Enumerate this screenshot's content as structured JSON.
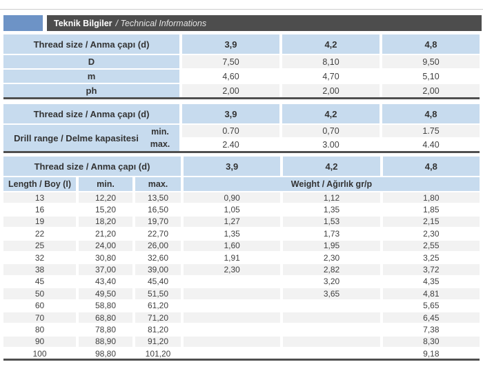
{
  "header": {
    "title": "Teknik Bilgiler",
    "subtitle": "/ Technical Informations"
  },
  "thread_header_label": "Thread size / Anma çapı (d)",
  "sizes": [
    "3,9",
    "4,2",
    "4,8"
  ],
  "colors": {
    "brand_blue": "#6d93c6",
    "header_dark": "#4d4d4d",
    "cell_blue": "#c7dbee",
    "stripe_gray": "#f2f2f2"
  },
  "table1": {
    "rows": [
      {
        "label": "D",
        "values": [
          "7,50",
          "8,10",
          "9,50"
        ]
      },
      {
        "label": "m",
        "values": [
          "4,60",
          "4,70",
          "5,10"
        ]
      },
      {
        "label": "ph",
        "values": [
          "2,00",
          "2,00",
          "2,00"
        ]
      }
    ]
  },
  "table2": {
    "label": "Drill range / Delme kapasitesi",
    "rows": [
      {
        "label": "min.",
        "values": [
          "0.70",
          "0,70",
          "1.75"
        ]
      },
      {
        "label": "max.",
        "values": [
          "2.40",
          "3.00",
          "4.40"
        ]
      }
    ]
  },
  "table3": {
    "length_label": "Length / Boy (I)",
    "min_label": "min.",
    "max_label": "max.",
    "weight_label": "Weight / Ağırlık gr/p",
    "rows": [
      {
        "length": "13",
        "min": "12,20",
        "max": "13,50",
        "w": [
          "0,90",
          "1,12",
          "1,80"
        ]
      },
      {
        "length": "16",
        "min": "15,20",
        "max": "16,50",
        "w": [
          "1,05",
          "1,35",
          "1,85"
        ]
      },
      {
        "length": "19",
        "min": "18,20",
        "max": "19,70",
        "w": [
          "1,27",
          "1,53",
          "2,15"
        ]
      },
      {
        "length": "22",
        "min": "21,20",
        "max": "22,70",
        "w": [
          "1,35",
          "1,73",
          "2,30"
        ]
      },
      {
        "length": "25",
        "min": "24,00",
        "max": "26,00",
        "w": [
          "1,60",
          "1,95",
          "2,55"
        ]
      },
      {
        "length": "32",
        "min": "30,80",
        "max": "32,60",
        "w": [
          "1,91",
          "2,30",
          "3,25"
        ]
      },
      {
        "length": "38",
        "min": "37,00",
        "max": "39,00",
        "w": [
          "2,30",
          "2,82",
          "3,72"
        ]
      },
      {
        "length": "45",
        "min": "43,40",
        "max": "45,40",
        "w": [
          "",
          "3,20",
          "4,35"
        ]
      },
      {
        "length": "50",
        "min": "49,50",
        "max": "51,50",
        "w": [
          "",
          "3,65",
          "4,81"
        ]
      },
      {
        "length": "60",
        "min": "58,80",
        "max": "61,20",
        "w": [
          "",
          "",
          "5,65"
        ]
      },
      {
        "length": "70",
        "min": "68,80",
        "max": "71,20",
        "w": [
          "",
          "",
          "6,45"
        ]
      },
      {
        "length": "80",
        "min": "78,80",
        "max": "81,20",
        "w": [
          "",
          "",
          "7,38"
        ]
      },
      {
        "length": "90",
        "min": "88,90",
        "max": "91,20",
        "w": [
          "",
          "",
          "8,30"
        ]
      },
      {
        "length": "100",
        "min": "98,80",
        "max": "101,20",
        "w": [
          "",
          "",
          "9,18"
        ]
      }
    ]
  }
}
